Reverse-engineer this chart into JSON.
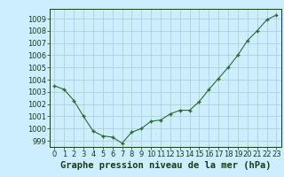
{
  "x": [
    0,
    1,
    2,
    3,
    4,
    5,
    6,
    7,
    8,
    9,
    10,
    11,
    12,
    13,
    14,
    15,
    16,
    17,
    18,
    19,
    20,
    21,
    22,
    23
  ],
  "y": [
    1003.5,
    1003.2,
    1002.3,
    1001.0,
    999.8,
    999.4,
    999.3,
    998.8,
    999.7,
    1000.0,
    1000.6,
    1000.7,
    1001.2,
    1001.5,
    1001.5,
    1002.2,
    1003.2,
    1004.1,
    1005.0,
    1006.0,
    1007.2,
    1008.0,
    1008.9,
    1009.3
  ],
  "line_color": "#2d6a2d",
  "marker": "+",
  "bg_color": "#cceeff",
  "grid_color": "#aacccc",
  "title": "Graphe pression niveau de la mer (hPa)",
  "ylabel_ticks": [
    999,
    1000,
    1001,
    1002,
    1003,
    1004,
    1005,
    1006,
    1007,
    1008,
    1009
  ],
  "ylim": [
    998.5,
    1009.8
  ],
  "xlim": [
    -0.5,
    23.5
  ],
  "xlabel_ticks": [
    0,
    1,
    2,
    3,
    4,
    5,
    6,
    7,
    8,
    9,
    10,
    11,
    12,
    13,
    14,
    15,
    16,
    17,
    18,
    19,
    20,
    21,
    22,
    23
  ],
  "title_fontsize": 7.5,
  "tick_fontsize": 6,
  "title_color": "#1a3a1a",
  "tick_color": "#1a3a1a"
}
